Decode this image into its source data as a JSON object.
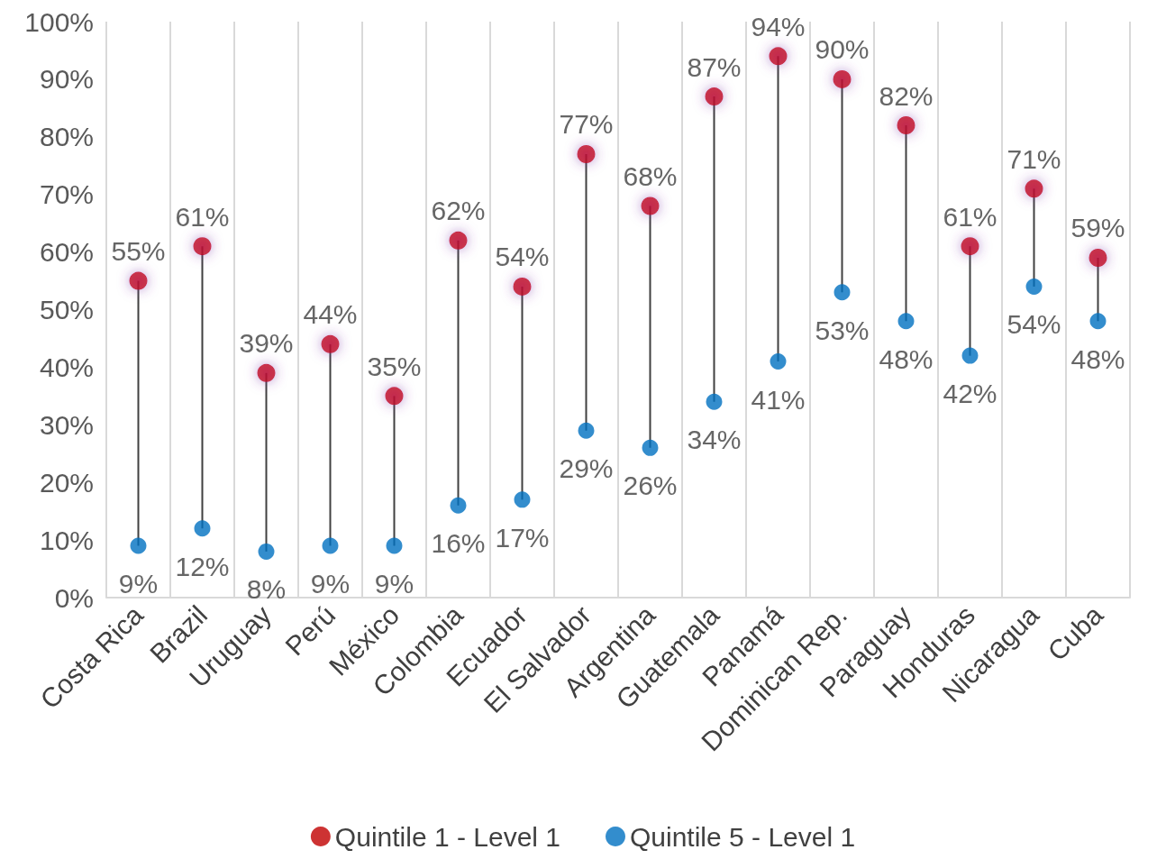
{
  "chart_data": {
    "type": "scatter",
    "categories": [
      "Costa Rica",
      "Brazil",
      "Uruguay",
      "Perú",
      "México",
      "Colombia",
      "Ecuador",
      "El Salvador",
      "Argentina",
      "Guatemala",
      "Panamá",
      "Dominican Rep.",
      "Paraguay",
      "Honduras",
      "Nicaragua",
      "Cuba"
    ],
    "series": [
      {
        "name": "Quintile 1 - Level 1",
        "color": "#c00000",
        "values": [
          55,
          61,
          39,
          44,
          35,
          62,
          54,
          77,
          68,
          87,
          94,
          90,
          82,
          61,
          71,
          59
        ],
        "value_labels": [
          "55%",
          "61%",
          "39%",
          "44%",
          "35%",
          "62%",
          "54%",
          "77%",
          "68%",
          "87%",
          "94%",
          "90%",
          "82%",
          "61%",
          "71%",
          "59%"
        ]
      },
      {
        "name": "Quintile 5 - Level 1",
        "color": "#0070c0",
        "values": [
          9,
          12,
          8,
          9,
          9,
          16,
          17,
          29,
          26,
          34,
          41,
          53,
          48,
          42,
          54,
          48
        ],
        "value_labels": [
          "9%",
          "12%",
          "8%",
          "9%",
          "9%",
          "16%",
          "17%",
          "29%",
          "26%",
          "34%",
          "41%",
          "53%",
          "48%",
          "42%",
          "54%",
          "48%"
        ]
      }
    ],
    "ylim": [
      0,
      100
    ],
    "yticks": [
      {
        "value": 0,
        "label": "0%"
      },
      {
        "value": 10,
        "label": "10%"
      },
      {
        "value": 20,
        "label": "20%"
      },
      {
        "value": 30,
        "label": "30%"
      },
      {
        "value": 40,
        "label": "40%"
      },
      {
        "value": 50,
        "label": "50%"
      },
      {
        "value": 60,
        "label": "60%"
      },
      {
        "value": 70,
        "label": "70%"
      },
      {
        "value": 80,
        "label": "80%"
      },
      {
        "value": 90,
        "label": "90%"
      },
      {
        "value": 100,
        "label": "100%"
      }
    ],
    "grid": "x",
    "legend": "bottom",
    "marker": "circle"
  }
}
